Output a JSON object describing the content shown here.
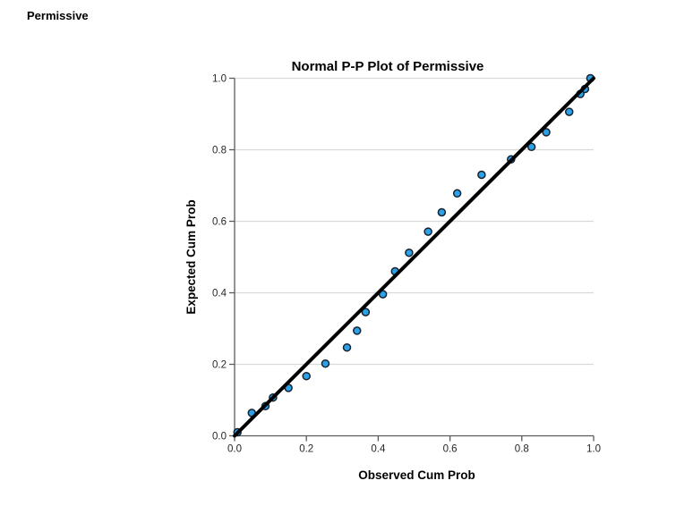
{
  "page": {
    "heading": "Permissive"
  },
  "chart_data": {
    "type": "scatter",
    "title": "Normal P-P Plot of Permissive",
    "xlabel": "Observed Cum Prob",
    "ylabel": "Expected Cum Prob",
    "xlim": [
      0.0,
      1.0
    ],
    "ylim": [
      0.0,
      1.0
    ],
    "xticks": [
      0.0,
      0.2,
      0.4,
      0.6,
      0.8,
      1.0
    ],
    "yticks": [
      0.0,
      0.2,
      0.4,
      0.6,
      0.8,
      1.0
    ],
    "grid": "horizontal-only",
    "legend": "none",
    "reference_line": {
      "from": [
        0.0,
        0.0
      ],
      "to": [
        1.0,
        1.0
      ]
    },
    "points": [
      [
        0.008,
        0.01
      ],
      [
        0.048,
        0.064
      ],
      [
        0.086,
        0.083
      ],
      [
        0.107,
        0.107
      ],
      [
        0.15,
        0.134
      ],
      [
        0.2,
        0.167
      ],
      [
        0.253,
        0.202
      ],
      [
        0.313,
        0.247
      ],
      [
        0.341,
        0.294
      ],
      [
        0.365,
        0.346
      ],
      [
        0.413,
        0.396
      ],
      [
        0.447,
        0.46
      ],
      [
        0.486,
        0.512
      ],
      [
        0.539,
        0.571
      ],
      [
        0.577,
        0.625
      ],
      [
        0.62,
        0.678
      ],
      [
        0.688,
        0.73
      ],
      [
        0.77,
        0.773
      ],
      [
        0.827,
        0.808
      ],
      [
        0.868,
        0.849
      ],
      [
        0.932,
        0.906
      ],
      [
        0.963,
        0.956
      ],
      [
        0.976,
        0.97
      ],
      [
        0.991,
        1.0
      ]
    ],
    "colors": {
      "marker_fill": "#2ba1e8",
      "marker_stroke": "#16222f",
      "reference_line": "#000000",
      "grid": "#d9d9d9",
      "axis": "#5a5a5a",
      "tick_text": "#262626",
      "label_text": "#000000"
    }
  }
}
